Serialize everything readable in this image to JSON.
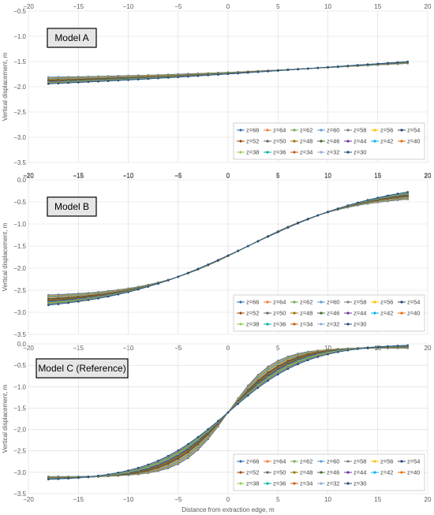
{
  "chart_data": [
    {
      "type": "line",
      "title": "Model A",
      "xlabel": "",
      "ylabel": "Vertical displacement, m",
      "xlim": [
        -20,
        20
      ],
      "ylim": [
        -3.5,
        -0.5
      ],
      "x_ticks": [
        "−20",
        "−15",
        "−10",
        "−5",
        "0",
        "5",
        "10",
        "15",
        "20"
      ],
      "y_ticks": [
        "−0.5",
        "−1.0",
        "−1.5",
        "−2.0",
        "−2.5",
        "−3.0",
        "−3.5"
      ],
      "x_points": [
        -18,
        -17,
        -16,
        -15,
        -14,
        -13,
        -12,
        -11,
        -10,
        -9,
        -8,
        -7,
        -6,
        -5,
        -4,
        -3,
        -2,
        -1,
        0,
        1,
        2,
        3,
        4,
        5,
        6,
        7,
        8,
        9,
        10,
        11,
        12,
        13,
        14,
        15,
        16,
        17,
        18
      ],
      "model": {
        "mid": -1.6,
        "amp_min": 0.3,
        "amp_max": 0.6,
        "w_min": 25,
        "w_max": 40,
        "xc": 10,
        "ac": -0.05
      },
      "legend": [
        "z=66",
        "z=64",
        "z=62",
        "z=60",
        "z=58",
        "z=56",
        "z=54",
        "z=52",
        "z=50",
        "z=48",
        "z=46",
        "z=44",
        "z=42",
        "z=40",
        "z=38",
        "z=36",
        "z=34",
        "z=32",
        "z=30"
      ],
      "legend_position": "bottom-right",
      "grid": true
    },
    {
      "type": "line",
      "title": "Model B",
      "xlabel": "",
      "ylabel": "Vertical displacement, m",
      "xlim": [
        -20,
        20
      ],
      "ylim": [
        -3.5,
        0
      ],
      "x_ticks": [
        "−20",
        "−15",
        "−10",
        "−5",
        "0",
        "5",
        "10",
        "15",
        "20"
      ],
      "y_ticks": [
        "0.0",
        "−0.5",
        "−1.0",
        "−1.5",
        "−2.0",
        "−2.5",
        "−3.0",
        "−3.5"
      ],
      "x_points": [
        -18,
        -17,
        -16,
        -15,
        -14,
        -13,
        -12,
        -11,
        -10,
        -9,
        -8,
        -7,
        -6,
        -5,
        -4,
        -3,
        -2,
        -1,
        0,
        1,
        2,
        3,
        4,
        5,
        6,
        7,
        8,
        9,
        10,
        11,
        12,
        13,
        14,
        15,
        16,
        17,
        18
      ],
      "model": {
        "mid": -1.5,
        "amp_min": 1.15,
        "amp_max": 1.5,
        "w_min": 10,
        "w_max": 14,
        "xc": 2,
        "ac": 0
      },
      "legend": [
        "z=66",
        "z=64",
        "z=62",
        "z=60",
        "z=58",
        "z=56",
        "z=54",
        "z=52",
        "z=50",
        "z=48",
        "z=46",
        "z=44",
        "z=42",
        "z=40",
        "z=38",
        "z=36",
        "z=34",
        "z=32",
        "z=30"
      ],
      "legend_position": "bottom-right",
      "grid": true
    },
    {
      "type": "line",
      "title": "Model C (Reference)",
      "xlabel": "Distance from extraction edge, m",
      "ylabel": "Vertical displacement, m",
      "xlim": [
        -20,
        20
      ],
      "ylim": [
        -3.5,
        0
      ],
      "x_ticks": [
        "−20",
        "−15",
        "−10",
        "−5",
        "0",
        "5",
        "10",
        "15",
        "20"
      ],
      "y_ticks": [
        "0.0",
        "−0.5",
        "−1.0",
        "−1.5",
        "−2.0",
        "−2.5",
        "−3.0",
        "−3.5"
      ],
      "x_points": [
        -18,
        -17,
        -16,
        -15,
        -14,
        -13,
        -12,
        -11,
        -10,
        -9,
        -8,
        -7,
        -6,
        -5,
        -4,
        -3,
        -2,
        -1,
        0,
        1,
        2,
        3,
        4,
        5,
        6,
        7,
        8,
        9,
        10,
        11,
        12,
        13,
        14,
        15,
        16,
        17,
        18
      ],
      "model": {
        "mid": -1.6,
        "amp_min": 1.5,
        "amp_max": 1.6,
        "w_min": 4.5,
        "w_max": 8,
        "xc": 0,
        "ac": 0
      },
      "legend": [
        "z=66",
        "z=64",
        "z=62",
        "z=60",
        "z=58",
        "z=56",
        "z=54",
        "z=52",
        "z=50",
        "z=48",
        "z=46",
        "z=44",
        "z=42",
        "z=40",
        "z=38",
        "z=36",
        "z=34",
        "z=32",
        "z=30"
      ],
      "legend_position": "bottom-right",
      "grid": true
    }
  ],
  "series_colors": [
    "#2E6DB4",
    "#ED7D31",
    "#70AD47",
    "#5B9BD5",
    "#7F7F7F",
    "#FFC000",
    "#264478",
    "#9E480E",
    "#636363",
    "#997300",
    "#43682B",
    "#7030A0",
    "#00B0F0",
    "#E46C0A",
    "#92D050",
    "#00B0A0",
    "#C55A11",
    "#8FAADC",
    "#1F4E79"
  ]
}
